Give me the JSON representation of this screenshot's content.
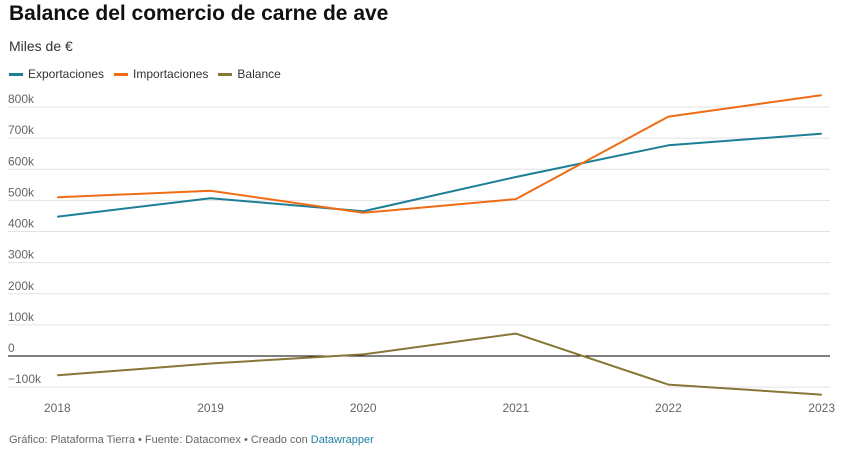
{
  "title": "Balance del comercio de carne de ave",
  "subtitle": "Miles de €",
  "footer": {
    "prefix": "Gráfico: Plataforma Tierra • Fuente: Datacomex • Creado con ",
    "link": "Datawrapper"
  },
  "colors": {
    "Exportaciones": "#1c7f96",
    "Importaciones": "#ef6c14",
    "Balance": "#877637"
  },
  "chart_data": {
    "type": "line",
    "x": [
      "2018",
      "2019",
      "2020",
      "2021",
      "2022",
      "2023"
    ],
    "series": [
      {
        "name": "Exportaciones",
        "values": [
          448000,
          507000,
          465000,
          575000,
          677000,
          714000
        ]
      },
      {
        "name": "Importaciones",
        "values": [
          510000,
          531000,
          460000,
          504000,
          769000,
          838000
        ]
      },
      {
        "name": "Balance",
        "values": [
          -62000,
          -24000,
          5000,
          72000,
          -92000,
          -124000
        ]
      }
    ],
    "yticks": [
      800000,
      700000,
      600000,
      500000,
      400000,
      300000,
      200000,
      100000,
      0,
      -100000
    ],
    "ytick_labels": [
      "800k",
      "700k",
      "600k",
      "500k",
      "400k",
      "300k",
      "200k",
      "100k",
      "0",
      "−100k"
    ],
    "ylim": [
      -130000,
      840000
    ],
    "grid": true,
    "legend_position": "top-left"
  }
}
